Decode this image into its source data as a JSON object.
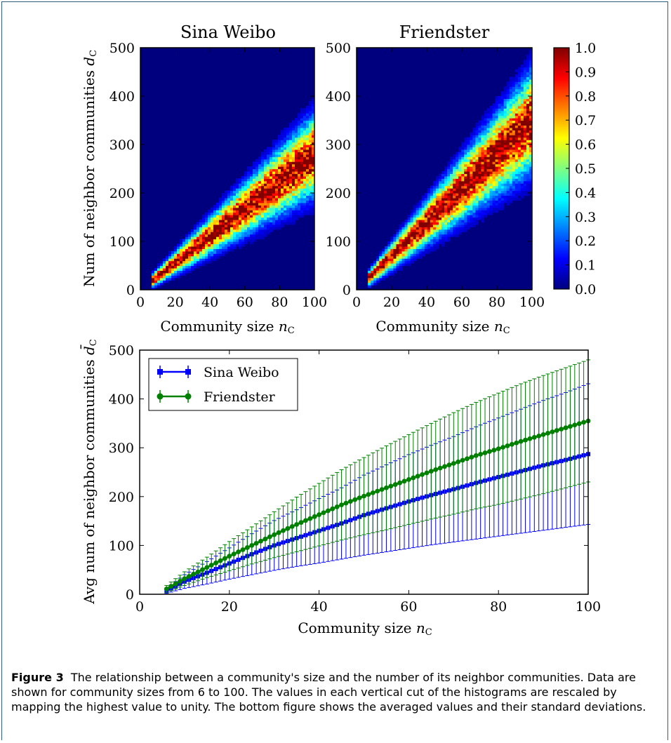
{
  "chart_data": [
    {
      "type": "heatmap",
      "title": "Sina Weibo",
      "xlabel": "Community size n_c",
      "ylabel": "Num of neighbor communities d_c",
      "xlim": [
        0,
        100
      ],
      "ylim": [
        0,
        500
      ],
      "xticks": [
        "0",
        "20",
        "40",
        "60",
        "80",
        "100"
      ],
      "yticks": [
        "0",
        "100",
        "200",
        "300",
        "400",
        "500"
      ],
      "x_range_shown": [
        6,
        100
      ],
      "ridge_slope": 2.8,
      "description": ""
    },
    {
      "type": "heatmap",
      "title": "Friendster",
      "xlabel": "Community size n_c",
      "xlim": [
        0,
        100
      ],
      "ylim": [
        0,
        500
      ],
      "xticks": [
        "0",
        "20",
        "40",
        "60",
        "80",
        "100"
      ],
      "yticks": [
        "0",
        "100",
        "200",
        "300",
        "400",
        "500"
      ],
      "x_range_shown": [
        6,
        100
      ],
      "ridge_slope": 3.5
    },
    {
      "type": "colorbar",
      "colormap": "jet",
      "range": [
        0.0,
        1.0
      ],
      "ticks": [
        "0.0",
        "0.1",
        "0.2",
        "0.3",
        "0.4",
        "0.5",
        "0.6",
        "0.7",
        "0.8",
        "0.9",
        "1.0"
      ]
    },
    {
      "type": "line",
      "xlabel": "Community size n_c",
      "ylabel": "Avg num of neighbor communities d̄_c",
      "xlim": [
        0,
        100
      ],
      "ylim": [
        0,
        500
      ],
      "xticks": [
        "0",
        "20",
        "40",
        "60",
        "80",
        "100"
      ],
      "yticks": [
        "0",
        "100",
        "200",
        "300",
        "400",
        "500"
      ],
      "legend_position": "top-left",
      "x": [
        6,
        10,
        15,
        20,
        25,
        30,
        35,
        40,
        45,
        50,
        55,
        60,
        65,
        70,
        75,
        80,
        85,
        90,
        95,
        100
      ],
      "series": [
        {
          "name": "Sina Weibo",
          "color": "#0000ff",
          "marker": "square",
          "values": [
            7,
            26,
            44,
            63,
            82,
            100,
            115,
            130,
            145,
            162,
            176,
            190,
            203,
            215,
            228,
            240,
            252,
            264,
            275,
            287
          ],
          "error": [
            5,
            14,
            23,
            32,
            42,
            51,
            58,
            66,
            73,
            82,
            89,
            96,
            102,
            108,
            115,
            121,
            127,
            133,
            138,
            144
          ]
        },
        {
          "name": "Friendster",
          "color": "#008000",
          "marker": "circle",
          "values": [
            11,
            32,
            55,
            78,
            100,
            122,
            143,
            163,
            183,
            201,
            218,
            235,
            252,
            268,
            284,
            298,
            313,
            327,
            341,
            355
          ],
          "error": [
            7,
            14,
            21,
            30,
            38,
            47,
            56,
            64,
            72,
            79,
            86,
            92,
            98,
            104,
            109,
            114,
            118,
            121,
            123,
            125
          ]
        }
      ]
    }
  ],
  "caption": {
    "label": "Figure 3",
    "text": "The relationship between a community's size and the number of its neighbor communities. Data are shown for community sizes from 6 to 100. The values in each vertical cut of the histograms are rescaled by mapping the highest value to unity. The bottom figure shows the averaged values and their standard deviations."
  }
}
